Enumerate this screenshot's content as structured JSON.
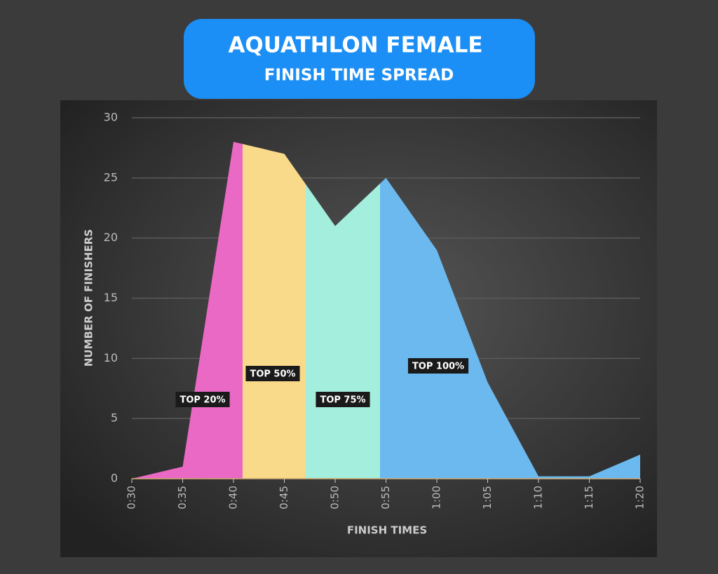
{
  "chart_data": {
    "type": "area",
    "title": "AQUATHLON FEMALE",
    "subtitle": "FINISH TIME SPREAD",
    "x_label": "FINISH TIMES",
    "y_label": "NUMBER OF FINISHERS",
    "x": [
      30,
      35,
      40,
      45,
      50,
      55,
      60,
      65,
      70,
      75,
      80
    ],
    "values": [
      0,
      1,
      28,
      27,
      21,
      25,
      19,
      8,
      0.2,
      0.2,
      2
    ],
    "xlim": [
      30,
      80
    ],
    "xticks": [
      {
        "value": 30,
        "label": "0:30"
      },
      {
        "value": 35,
        "label": "0:35"
      },
      {
        "value": 40,
        "label": "0:40"
      },
      {
        "value": 45,
        "label": "0:45"
      },
      {
        "value": 50,
        "label": "0:50"
      },
      {
        "value": 55,
        "label": "0:55"
      },
      {
        "value": 60,
        "label": "1:00"
      },
      {
        "value": 65,
        "label": "1:05"
      },
      {
        "value": 70,
        "label": "1:10"
      },
      {
        "value": 75,
        "label": "1:15"
      },
      {
        "value": 80,
        "label": "1:20"
      }
    ],
    "ylim": [
      0,
      30
    ],
    "yticks": [
      0,
      5,
      10,
      15,
      20,
      25,
      30
    ],
    "grid": true,
    "regions": [
      {
        "label": "TOP 20%",
        "color": "#ea69c4",
        "end": 40.9
      },
      {
        "label": "TOP 50%",
        "color": "#f9d98a",
        "end": 47.1
      },
      {
        "label": "TOP 75%",
        "color": "#a3eedc",
        "end": 54.4
      },
      {
        "label": "TOP 100%",
        "color": "#6bb9ef",
        "end": 80
      }
    ]
  }
}
